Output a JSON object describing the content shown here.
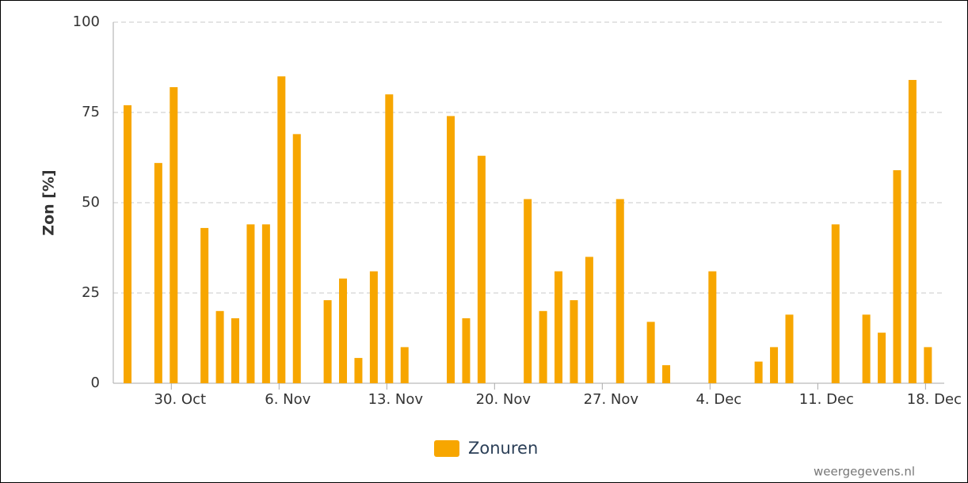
{
  "chart_data": {
    "type": "bar",
    "y_label": "Zon [%]",
    "credits": "weergegevens.nl",
    "categories": [
      null,
      null,
      null,
      "30. Oct",
      null,
      null,
      null,
      null,
      null,
      null,
      "6. Nov",
      null,
      null,
      null,
      null,
      null,
      null,
      "13. Nov",
      null,
      null,
      null,
      null,
      null,
      null,
      "20. Nov",
      null,
      null,
      null,
      null,
      null,
      null,
      "27. Nov",
      null,
      null,
      null,
      null,
      null,
      null,
      "4. Dec",
      null,
      null,
      null,
      null,
      null,
      null,
      "11. Dec",
      null,
      null,
      null,
      null,
      null,
      null,
      "18. Dec"
    ],
    "series": [
      {
        "name": "Zonuren",
        "color": "#f7a600",
        "values": [
          77,
          0,
          61,
          82,
          0,
          43,
          20,
          18,
          44,
          44,
          85,
          69,
          0,
          23,
          29,
          7,
          31,
          80,
          10,
          0,
          0,
          74,
          18,
          63,
          0,
          0,
          51,
          20,
          31,
          23,
          35,
          0,
          51,
          0,
          17,
          5,
          0,
          0,
          31,
          0,
          0,
          6,
          10,
          19,
          0,
          0,
          44,
          0,
          19,
          14,
          59,
          84,
          10
        ]
      }
    ],
    "ylim": [
      0,
      100
    ],
    "yticks": [
      0,
      25,
      50,
      75,
      100
    ],
    "grid": true,
    "legend": "bottom"
  }
}
